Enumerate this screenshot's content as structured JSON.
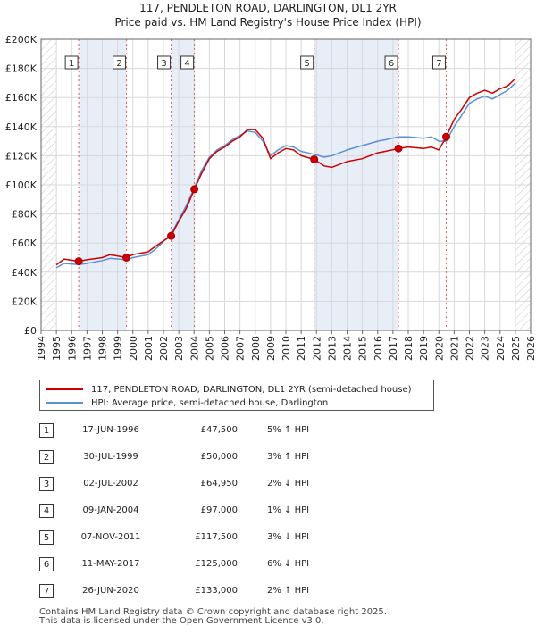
{
  "chart_data": {
    "type": "line",
    "title": "117, PENDLETON ROAD, DARLINGTON, DL1 2YR",
    "subtitle": "Price paid vs. HM Land Registry's House Price Index (HPI)",
    "xlim": [
      1994,
      2026
    ],
    "ylim": [
      0,
      200000
    ],
    "y_ticks": [
      {
        "value": 0,
        "label": "£0"
      },
      {
        "value": 20000,
        "label": "£20K"
      },
      {
        "value": 40000,
        "label": "£40K"
      },
      {
        "value": 60000,
        "label": "£60K"
      },
      {
        "value": 80000,
        "label": "£80K"
      },
      {
        "value": 100000,
        "label": "£100K"
      },
      {
        "value": 120000,
        "label": "£120K"
      },
      {
        "value": 140000,
        "label": "£140K"
      },
      {
        "value": 160000,
        "label": "£160K"
      },
      {
        "value": 180000,
        "label": "£180K"
      },
      {
        "value": 200000,
        "label": "£200K"
      }
    ],
    "x_ticks": [
      "1994",
      "1995",
      "1996",
      "1997",
      "1998",
      "1999",
      "2000",
      "2001",
      "2002",
      "2003",
      "2004",
      "2005",
      "2006",
      "2007",
      "2008",
      "2009",
      "2010",
      "2011",
      "2012",
      "2013",
      "2014",
      "2015",
      "2016",
      "2017",
      "2018",
      "2019",
      "2020",
      "2021",
      "2022",
      "2023",
      "2024",
      "2025",
      "2026"
    ],
    "data_start": 1995.0,
    "data_end": 2025.0,
    "series": [
      {
        "name": "117, PENDLETON ROAD, DARLINGTON, DL1 2YR (semi-detached house)",
        "color": "#cc0000",
        "points": [
          [
            1995.0,
            45000
          ],
          [
            1995.5,
            49000
          ],
          [
            1996.46,
            47500
          ],
          [
            1997.0,
            48500
          ],
          [
            1998.0,
            50000
          ],
          [
            1998.5,
            52000
          ],
          [
            1999.58,
            50000
          ],
          [
            2000.0,
            52000
          ],
          [
            2001.0,
            54000
          ],
          [
            2001.5,
            58000
          ],
          [
            2002.5,
            64950
          ],
          [
            2003.0,
            75000
          ],
          [
            2003.5,
            84000
          ],
          [
            2004.02,
            97000
          ],
          [
            2004.5,
            108000
          ],
          [
            2005.0,
            118000
          ],
          [
            2005.5,
            123000
          ],
          [
            2006.0,
            126000
          ],
          [
            2006.5,
            130000
          ],
          [
            2007.0,
            133000
          ],
          [
            2007.5,
            138000
          ],
          [
            2008.0,
            138000
          ],
          [
            2008.5,
            132000
          ],
          [
            2009.0,
            118000
          ],
          [
            2009.5,
            122000
          ],
          [
            2010.0,
            125000
          ],
          [
            2010.5,
            124000
          ],
          [
            2011.0,
            120000
          ],
          [
            2011.85,
            117500
          ],
          [
            2012.5,
            113000
          ],
          [
            2013.0,
            112000
          ],
          [
            2014.0,
            116000
          ],
          [
            2015.0,
            118000
          ],
          [
            2016.0,
            122000
          ],
          [
            2016.5,
            123000
          ],
          [
            2017.36,
            125000
          ],
          [
            2018.0,
            126000
          ],
          [
            2019.0,
            125000
          ],
          [
            2019.5,
            126000
          ],
          [
            2020.0,
            124000
          ],
          [
            2020.48,
            133000
          ],
          [
            2021.0,
            145000
          ],
          [
            2021.5,
            152000
          ],
          [
            2022.0,
            160000
          ],
          [
            2022.5,
            163000
          ],
          [
            2023.0,
            165000
          ],
          [
            2023.5,
            163000
          ],
          [
            2024.0,
            166000
          ],
          [
            2024.5,
            168000
          ],
          [
            2025.0,
            173000
          ]
        ]
      },
      {
        "name": "HPI: Average price, semi-detached house, Darlington",
        "color": "#5b8fd6",
        "points": [
          [
            1995.0,
            43000
          ],
          [
            1995.5,
            46000
          ],
          [
            1996.46,
            45300
          ],
          [
            1997.0,
            46000
          ],
          [
            1998.0,
            48000
          ],
          [
            1998.5,
            49500
          ],
          [
            1999.58,
            48500
          ],
          [
            2000.0,
            50000
          ],
          [
            2001.0,
            52000
          ],
          [
            2001.5,
            56000
          ],
          [
            2002.5,
            66300
          ],
          [
            2003.0,
            76000
          ],
          [
            2003.5,
            86000
          ],
          [
            2004.02,
            98000
          ],
          [
            2004.5,
            110000
          ],
          [
            2005.0,
            119000
          ],
          [
            2005.5,
            124000
          ],
          [
            2006.0,
            127000
          ],
          [
            2006.5,
            131000
          ],
          [
            2007.0,
            134000
          ],
          [
            2007.5,
            137000
          ],
          [
            2008.0,
            136000
          ],
          [
            2008.5,
            130000
          ],
          [
            2009.0,
            120000
          ],
          [
            2009.5,
            124000
          ],
          [
            2010.0,
            127000
          ],
          [
            2010.5,
            126000
          ],
          [
            2011.0,
            123000
          ],
          [
            2011.85,
            121000
          ],
          [
            2012.5,
            119000
          ],
          [
            2013.0,
            120000
          ],
          [
            2014.0,
            124000
          ],
          [
            2015.0,
            127000
          ],
          [
            2016.0,
            130000
          ],
          [
            2016.5,
            131000
          ],
          [
            2017.36,
            133000
          ],
          [
            2018.0,
            133000
          ],
          [
            2019.0,
            132000
          ],
          [
            2019.5,
            133000
          ],
          [
            2020.0,
            130000
          ],
          [
            2020.48,
            130000
          ],
          [
            2021.0,
            140000
          ],
          [
            2021.5,
            148000
          ],
          [
            2022.0,
            156000
          ],
          [
            2022.5,
            159000
          ],
          [
            2023.0,
            161000
          ],
          [
            2023.5,
            159000
          ],
          [
            2024.0,
            162000
          ],
          [
            2024.5,
            165000
          ],
          [
            2025.0,
            170000
          ]
        ]
      }
    ],
    "sales": [
      {
        "num": "1",
        "year": 1996.46,
        "value": 47500,
        "date": "17-JUN-1996",
        "price": "£47,500",
        "hpi": "5% ↑ HPI"
      },
      {
        "num": "2",
        "year": 1999.58,
        "value": 50000,
        "date": "30-JUL-1999",
        "price": "£50,000",
        "hpi": "3% ↑ HPI"
      },
      {
        "num": "3",
        "year": 2002.5,
        "value": 64950,
        "date": "02-JUL-2002",
        "price": "£64,950",
        "hpi": "2% ↓ HPI"
      },
      {
        "num": "4",
        "year": 2004.02,
        "value": 97000,
        "date": "09-JAN-2004",
        "price": "£97,000",
        "hpi": "1% ↓ HPI"
      },
      {
        "num": "5",
        "year": 2011.85,
        "value": 117500,
        "date": "07-NOV-2011",
        "price": "£117,500",
        "hpi": "3% ↓ HPI"
      },
      {
        "num": "6",
        "year": 2017.36,
        "value": 125000,
        "date": "11-MAY-2017",
        "price": "£125,000",
        "hpi": "6% ↓ HPI"
      },
      {
        "num": "7",
        "year": 2020.48,
        "value": 133000,
        "date": "26-JUN-2020",
        "price": "£133,000",
        "hpi": "2% ↑ HPI"
      }
    ]
  },
  "legend": {
    "property": "117, PENDLETON ROAD, DARLINGTON, DL1 2YR (semi-detached house)",
    "hpi": "HPI: Average price, semi-detached house, Darlington"
  },
  "footer": {
    "line1": "Contains HM Land Registry data © Crown copyright and database right 2025.",
    "line2": "This data is licensed under the Open Government Licence v3.0."
  },
  "colors": {
    "property": "#cc0000",
    "hpi": "#5b8fd6",
    "shade": "#e8eef8",
    "hatch": "#cccccc",
    "grid": "#d8d8d8"
  }
}
